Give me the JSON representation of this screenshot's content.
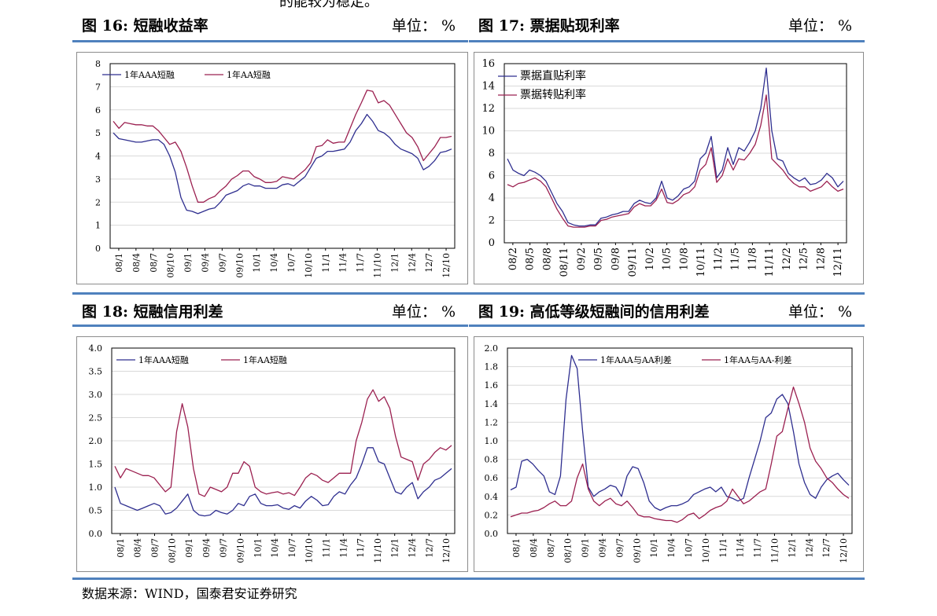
{
  "page": {
    "top_text": "的能较为稳定。",
    "source": "数据来源：WIND，国泰君安证券研究"
  },
  "panels": [
    {
      "title": "图 16:  短融收益率",
      "unit": "单位：  %"
    },
    {
      "title": "图 17:  票据贴现利率",
      "unit": "单位：  %"
    },
    {
      "title": "图 18:  短融信用利差",
      "unit": "单位：  %"
    },
    {
      "title": "图 19:  高低等级短融间的信用利差",
      "unit": "单位：  %"
    }
  ],
  "colors": {
    "series1": "#2e2e8f",
    "series2": "#9b2050",
    "rule": "#4f81bd",
    "grid": "#d9d9d9"
  },
  "chart_data": [
    {
      "type": "line",
      "ylim": [
        0,
        8
      ],
      "yticks": [
        "0",
        "1",
        "2",
        "3",
        "4",
        "5",
        "6",
        "7",
        "8"
      ],
      "xticks": [
        "08/1",
        "08/4",
        "08/7",
        "08/10",
        "09/1",
        "09/4",
        "09/7",
        "09/10",
        "10/1",
        "10/4",
        "10/7",
        "10/10",
        "11/1",
        "11/4",
        "11/7",
        "11/10",
        "12/1",
        "12/4",
        "12/7",
        "12/10"
      ],
      "legend_position": "top-left",
      "series": [
        {
          "name": "1年AAA短融",
          "values": [
            5.0,
            4.75,
            4.7,
            4.65,
            4.6,
            4.6,
            4.65,
            4.7,
            4.7,
            4.5,
            4.0,
            3.3,
            2.2,
            1.65,
            1.6,
            1.5,
            1.6,
            1.7,
            1.75,
            2.0,
            2.3,
            2.4,
            2.5,
            2.7,
            2.8,
            2.7,
            2.7,
            2.6,
            2.6,
            2.6,
            2.75,
            2.8,
            2.7,
            2.9,
            3.1,
            3.5,
            3.9,
            4.0,
            4.2,
            4.2,
            4.25,
            4.3,
            4.6,
            5.1,
            5.4,
            5.8,
            5.5,
            5.1,
            5.0,
            4.8,
            4.5,
            4.3,
            4.2,
            4.1,
            3.9,
            3.4,
            3.55,
            3.8,
            4.15,
            4.2,
            4.3
          ]
        },
        {
          "name": "1年AA短融",
          "values": [
            5.5,
            5.2,
            5.45,
            5.4,
            5.35,
            5.35,
            5.3,
            5.3,
            5.1,
            4.8,
            4.5,
            4.6,
            4.2,
            3.5,
            2.7,
            2.0,
            2.0,
            2.15,
            2.25,
            2.5,
            2.7,
            3.0,
            3.15,
            3.35,
            3.35,
            3.1,
            3.0,
            2.85,
            2.85,
            2.9,
            3.1,
            3.05,
            3.0,
            3.2,
            3.4,
            3.7,
            4.4,
            4.45,
            4.7,
            4.55,
            4.6,
            4.6,
            5.2,
            5.8,
            6.3,
            6.85,
            6.8,
            6.3,
            6.4,
            6.2,
            5.8,
            5.4,
            5.0,
            4.8,
            4.4,
            3.8,
            4.1,
            4.4,
            4.8,
            4.8,
            4.85
          ]
        }
      ]
    },
    {
      "type": "line",
      "ylim": [
        0,
        16
      ],
      "yticks": [
        "0",
        "2",
        "4",
        "6",
        "8",
        "10",
        "12",
        "14",
        "16"
      ],
      "xticks": [
        "08/2",
        "08/5",
        "08/8",
        "08/11",
        "09/2",
        "09/5",
        "09/8",
        "09/11",
        "10/2",
        "10/5",
        "10/8",
        "10/11",
        "11/2",
        "11/5",
        "11/8",
        "11/11",
        "12/2",
        "12/5",
        "12/8",
        "12/11"
      ],
      "legend_position": "top-left",
      "series": [
        {
          "name": "票据直贴利率",
          "values": [
            7.5,
            6.5,
            6.2,
            6.0,
            6.5,
            6.3,
            6.0,
            5.5,
            4.5,
            3.5,
            2.8,
            1.8,
            1.6,
            1.5,
            1.5,
            1.6,
            1.6,
            2.2,
            2.3,
            2.5,
            2.6,
            2.8,
            2.8,
            3.5,
            3.8,
            3.6,
            3.5,
            4.0,
            5.5,
            4.0,
            3.8,
            4.2,
            4.8,
            5.0,
            5.5,
            7.5,
            8.0,
            9.5,
            5.8,
            6.5,
            8.5,
            7.0,
            8.5,
            8.2,
            9.0,
            10.0,
            12.0,
            15.6,
            10.0,
            7.5,
            7.3,
            6.2,
            5.8,
            5.5,
            5.8,
            5.2,
            5.3,
            5.6,
            6.2,
            5.8,
            5.0,
            5.5
          ]
        },
        {
          "name": "票据转贴利率",
          "values": [
            5.2,
            5.0,
            5.3,
            5.4,
            5.6,
            5.8,
            5.5,
            5.0,
            4.0,
            3.0,
            2.2,
            1.5,
            1.4,
            1.4,
            1.4,
            1.5,
            1.5,
            2.0,
            2.1,
            2.3,
            2.4,
            2.5,
            2.6,
            3.2,
            3.5,
            3.3,
            3.3,
            3.8,
            4.8,
            3.6,
            3.5,
            3.8,
            4.3,
            4.5,
            5.0,
            6.5,
            7.0,
            8.5,
            5.4,
            6.0,
            7.5,
            6.5,
            7.5,
            7.4,
            8.0,
            8.8,
            10.5,
            13.2,
            7.5,
            7.0,
            6.5,
            5.8,
            5.3,
            5.0,
            5.0,
            4.6,
            4.8,
            5.0,
            5.5,
            5.0,
            4.6,
            4.8
          ]
        }
      ]
    },
    {
      "type": "line",
      "ylim": [
        0.0,
        4.0
      ],
      "yticks": [
        "0.0",
        "0.5",
        "1.0",
        "1.5",
        "2.0",
        "2.5",
        "3.0",
        "3.5",
        "4.0"
      ],
      "xticks": [
        "08/1",
        "08/4",
        "08/7",
        "08/10",
        "09/1",
        "09/4",
        "09/7",
        "09/10",
        "10/1",
        "10/4",
        "10/7",
        "10/10",
        "11/1",
        "11/4",
        "11/7",
        "11/10",
        "12/1",
        "12/4",
        "12/7",
        "12/10"
      ],
      "legend_position": "top-left",
      "series": [
        {
          "name": "1年AAA短融",
          "values": [
            1.0,
            0.65,
            0.6,
            0.55,
            0.5,
            0.55,
            0.6,
            0.65,
            0.6,
            0.42,
            0.45,
            0.55,
            0.7,
            0.85,
            0.5,
            0.4,
            0.38,
            0.4,
            0.5,
            0.45,
            0.42,
            0.5,
            0.65,
            0.6,
            0.8,
            0.85,
            0.65,
            0.6,
            0.6,
            0.62,
            0.55,
            0.52,
            0.6,
            0.55,
            0.7,
            0.8,
            0.72,
            0.6,
            0.62,
            0.8,
            0.9,
            0.85,
            1.05,
            1.2,
            1.5,
            1.85,
            1.85,
            1.55,
            1.5,
            1.2,
            0.9,
            0.85,
            1.0,
            1.1,
            0.75,
            0.9,
            1.0,
            1.15,
            1.2,
            1.3,
            1.4
          ]
        },
        {
          "name": "1年AA短融",
          "values": [
            1.45,
            1.2,
            1.4,
            1.35,
            1.3,
            1.25,
            1.25,
            1.2,
            1.05,
            0.9,
            1.0,
            2.2,
            2.8,
            2.3,
            1.4,
            0.85,
            0.8,
            1.0,
            0.95,
            0.9,
            1.0,
            1.3,
            1.3,
            1.55,
            1.45,
            1.0,
            0.9,
            0.85,
            0.88,
            0.9,
            0.85,
            0.88,
            0.82,
            1.0,
            1.2,
            1.3,
            1.25,
            1.15,
            1.1,
            1.2,
            1.3,
            1.3,
            1.3,
            2.0,
            2.4,
            2.9,
            3.1,
            2.85,
            2.95,
            2.7,
            2.1,
            1.65,
            1.6,
            1.55,
            1.15,
            1.5,
            1.6,
            1.75,
            1.85,
            1.8,
            1.9
          ]
        }
      ]
    },
    {
      "type": "line",
      "ylim": [
        0.0,
        2.0
      ],
      "yticks": [
        "0.0",
        "0.2",
        "0.4",
        "0.6",
        "0.8",
        "1.0",
        "1.2",
        "1.4",
        "1.6",
        "1.8",
        "2.0"
      ],
      "xticks": [
        "08/1",
        "08/4",
        "08/7",
        "08/10",
        "09/1",
        "09/4",
        "09/7",
        "09/10",
        "10/1",
        "10/4",
        "10/7",
        "10/10",
        "11/1",
        "11/4",
        "11/7",
        "11/10",
        "12/1",
        "12/4",
        "12/7",
        "12/10"
      ],
      "legend_position": "top",
      "series": [
        {
          "name": "1年AAA与AA利差",
          "values": [
            0.47,
            0.5,
            0.78,
            0.8,
            0.75,
            0.68,
            0.62,
            0.45,
            0.42,
            0.62,
            1.45,
            1.92,
            1.78,
            1.1,
            0.5,
            0.4,
            0.45,
            0.48,
            0.52,
            0.5,
            0.4,
            0.62,
            0.72,
            0.7,
            0.55,
            0.35,
            0.28,
            0.25,
            0.28,
            0.3,
            0.3,
            0.32,
            0.35,
            0.42,
            0.45,
            0.48,
            0.5,
            0.45,
            0.5,
            0.4,
            0.38,
            0.35,
            0.38,
            0.6,
            0.8,
            1.0,
            1.25,
            1.3,
            1.45,
            1.5,
            1.4,
            1.1,
            0.75,
            0.55,
            0.42,
            0.38,
            0.5,
            0.58,
            0.62,
            0.65,
            0.58,
            0.52
          ]
        },
        {
          "name": "1年AA与AA-利差",
          "values": [
            0.18,
            0.2,
            0.22,
            0.22,
            0.24,
            0.25,
            0.28,
            0.32,
            0.35,
            0.3,
            0.3,
            0.35,
            0.6,
            0.75,
            0.48,
            0.35,
            0.3,
            0.35,
            0.38,
            0.32,
            0.3,
            0.35,
            0.28,
            0.2,
            0.18,
            0.18,
            0.16,
            0.15,
            0.14,
            0.14,
            0.12,
            0.15,
            0.2,
            0.22,
            0.16,
            0.2,
            0.25,
            0.28,
            0.3,
            0.35,
            0.48,
            0.4,
            0.32,
            0.35,
            0.4,
            0.45,
            0.48,
            0.75,
            1.05,
            1.1,
            1.35,
            1.58,
            1.4,
            1.2,
            0.92,
            0.78,
            0.7,
            0.6,
            0.55,
            0.48,
            0.42,
            0.38
          ]
        }
      ]
    }
  ]
}
